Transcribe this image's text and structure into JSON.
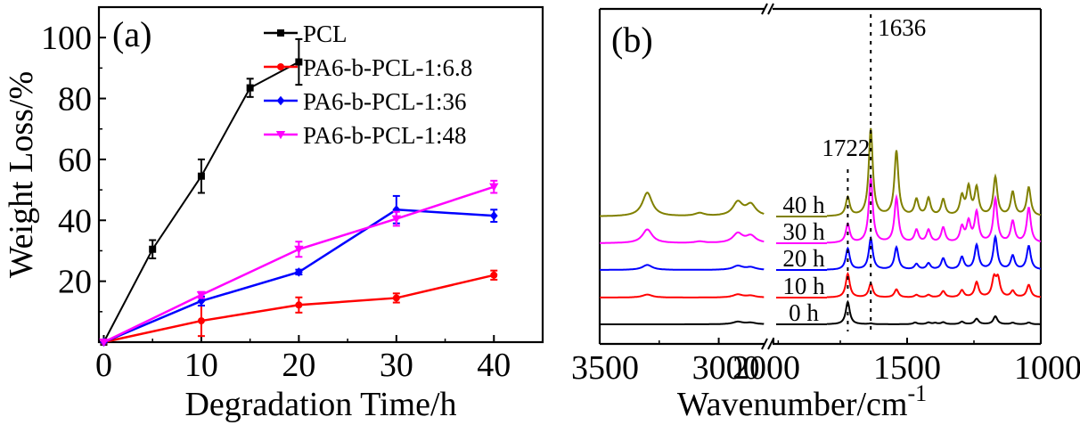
{
  "figure": {
    "panels": [
      "(a)",
      "(b)"
    ]
  },
  "chart_data": [
    {
      "type": "line",
      "panel_label": "(a)",
      "title": "",
      "xlabel": "Degradation Time/h",
      "ylabel": "Weight Loss/%",
      "xlim": [
        -0.5,
        45
      ],
      "ylim": [
        0,
        110
      ],
      "xticks": [
        0,
        10,
        20,
        30,
        40
      ],
      "yticks": [
        20,
        40,
        60,
        80,
        100
      ],
      "grid": false,
      "legend_position": "top-right",
      "series": [
        {
          "name": "PCL",
          "color": "#000000",
          "marker": "square",
          "x": [
            0,
            5,
            10,
            15,
            20
          ],
          "y": [
            0,
            30.5,
            54.5,
            83.5,
            92
          ],
          "err": [
            0,
            3,
            5.5,
            3,
            7.5
          ]
        },
        {
          "name": "PA6-b-PCL-1:6.8",
          "color": "#ff0000",
          "marker": "circle",
          "x": [
            0,
            10,
            20,
            30,
            40
          ],
          "y": [
            0,
            7,
            12.2,
            14.5,
            22
          ],
          "err": [
            0,
            5,
            2.5,
            1.5,
            1.5
          ]
        },
        {
          "name": "PA6-b-PCL-1:36",
          "color": "#0000ff",
          "marker": "diamond",
          "x": [
            0,
            10,
            20,
            30,
            40
          ],
          "y": [
            0,
            13.5,
            23,
            43.5,
            41.5
          ],
          "err": [
            0,
            1.5,
            0.8,
            4.5,
            2
          ]
        },
        {
          "name": "PA6-b-PCL-1:48",
          "color": "#ff00ff",
          "marker": "triangle-down",
          "x": [
            0,
            10,
            20,
            30,
            40
          ],
          "y": [
            0,
            15.5,
            30.5,
            40.5,
            51
          ],
          "err": [
            0,
            1,
            2.5,
            2.3,
            2
          ]
        }
      ]
    },
    {
      "type": "line",
      "panel_label": "(b)",
      "title": "",
      "xlabel": "Wavenumber/cm",
      "xlabel_superscript": "-1",
      "ylabel": "",
      "x_reversed": true,
      "x_break": [
        2800,
        2000
      ],
      "xlim_left_segment": [
        3500,
        2800
      ],
      "xlim_right_segment": [
        2000,
        1000
      ],
      "xticks": [
        3500,
        3000,
        2000,
        1500,
        1000
      ],
      "minor_xticks": [
        3250,
        2750,
        1750,
        1250
      ],
      "grid": false,
      "annotations": [
        {
          "text": "1722",
          "x": 1722
        },
        {
          "text": "1636",
          "x": 1636
        }
      ],
      "reference_lines_x": [
        1722,
        1636
      ],
      "series": [
        {
          "name": "0 h",
          "color": "#000000",
          "offset": 0,
          "peaks": [
            [
              2920,
              0.1
            ],
            [
              2865,
              0.06
            ],
            [
              1722,
              0.9
            ],
            [
              1636,
              0.03
            ],
            [
              1470,
              0.07
            ],
            [
              1420,
              0.07
            ],
            [
              1395,
              0.05
            ],
            [
              1365,
              0.08
            ],
            [
              1295,
              0.1
            ],
            [
              1240,
              0.22
            ],
            [
              1170,
              0.32
            ],
            [
              1105,
              0.06
            ],
            [
              1045,
              0.07
            ]
          ]
        },
        {
          "name": "10 h",
          "color": "#ff0000",
          "offset": 1,
          "peaks": [
            [
              3300,
              0.12
            ],
            [
              2920,
              0.12
            ],
            [
              2865,
              0.07
            ],
            [
              1722,
              0.95
            ],
            [
              1636,
              0.55
            ],
            [
              1540,
              0.32
            ],
            [
              1465,
              0.1
            ],
            [
              1420,
              0.1
            ],
            [
              1365,
              0.25
            ],
            [
              1295,
              0.28
            ],
            [
              1240,
              0.6
            ],
            [
              1175,
              0.72
            ],
            [
              1160,
              0.7
            ],
            [
              1105,
              0.25
            ],
            [
              1045,
              0.5
            ]
          ]
        },
        {
          "name": "20 h",
          "color": "#0000ff",
          "offset": 2,
          "peaks": [
            [
              3300,
              0.2
            ],
            [
              2920,
              0.16
            ],
            [
              2865,
              0.1
            ],
            [
              1722,
              0.85
            ],
            [
              1636,
              1.25
            ],
            [
              1540,
              0.9
            ],
            [
              1465,
              0.22
            ],
            [
              1420,
              0.25
            ],
            [
              1365,
              0.45
            ],
            [
              1295,
              0.5
            ],
            [
              1240,
              0.98
            ],
            [
              1170,
              1.3
            ],
            [
              1105,
              0.55
            ],
            [
              1045,
              0.95
            ]
          ]
        },
        {
          "name": "30 h",
          "color": "#ff00ff",
          "offset": 3,
          "peaks": [
            [
              3300,
              0.55
            ],
            [
              3080,
              0.06
            ],
            [
              2920,
              0.38
            ],
            [
              2865,
              0.28
            ],
            [
              1722,
              0.75
            ],
            [
              1636,
              2.6
            ],
            [
              1540,
              1.8
            ],
            [
              1465,
              0.5
            ],
            [
              1420,
              0.5
            ],
            [
              1365,
              0.6
            ],
            [
              1295,
              0.6
            ],
            [
              1270,
              0.8
            ],
            [
              1240,
              1.2
            ],
            [
              1170,
              1.75
            ],
            [
              1105,
              0.85
            ],
            [
              1045,
              1.4
            ]
          ]
        },
        {
          "name": "40 h",
          "color": "#808000",
          "offset": 4,
          "peaks": [
            [
              3300,
              0.95
            ],
            [
              3080,
              0.12
            ],
            [
              2920,
              0.55
            ],
            [
              2865,
              0.45
            ],
            [
              1722,
              0.75
            ],
            [
              1636,
              3.5
            ],
            [
              1540,
              2.6
            ],
            [
              1465,
              0.65
            ],
            [
              1420,
              0.7
            ],
            [
              1365,
              0.65
            ],
            [
              1295,
              0.75
            ],
            [
              1270,
              1.1
            ],
            [
              1240,
              1.1
            ],
            [
              1170,
              1.55
            ],
            [
              1105,
              0.95
            ],
            [
              1045,
              1.15
            ]
          ]
        }
      ]
    }
  ]
}
